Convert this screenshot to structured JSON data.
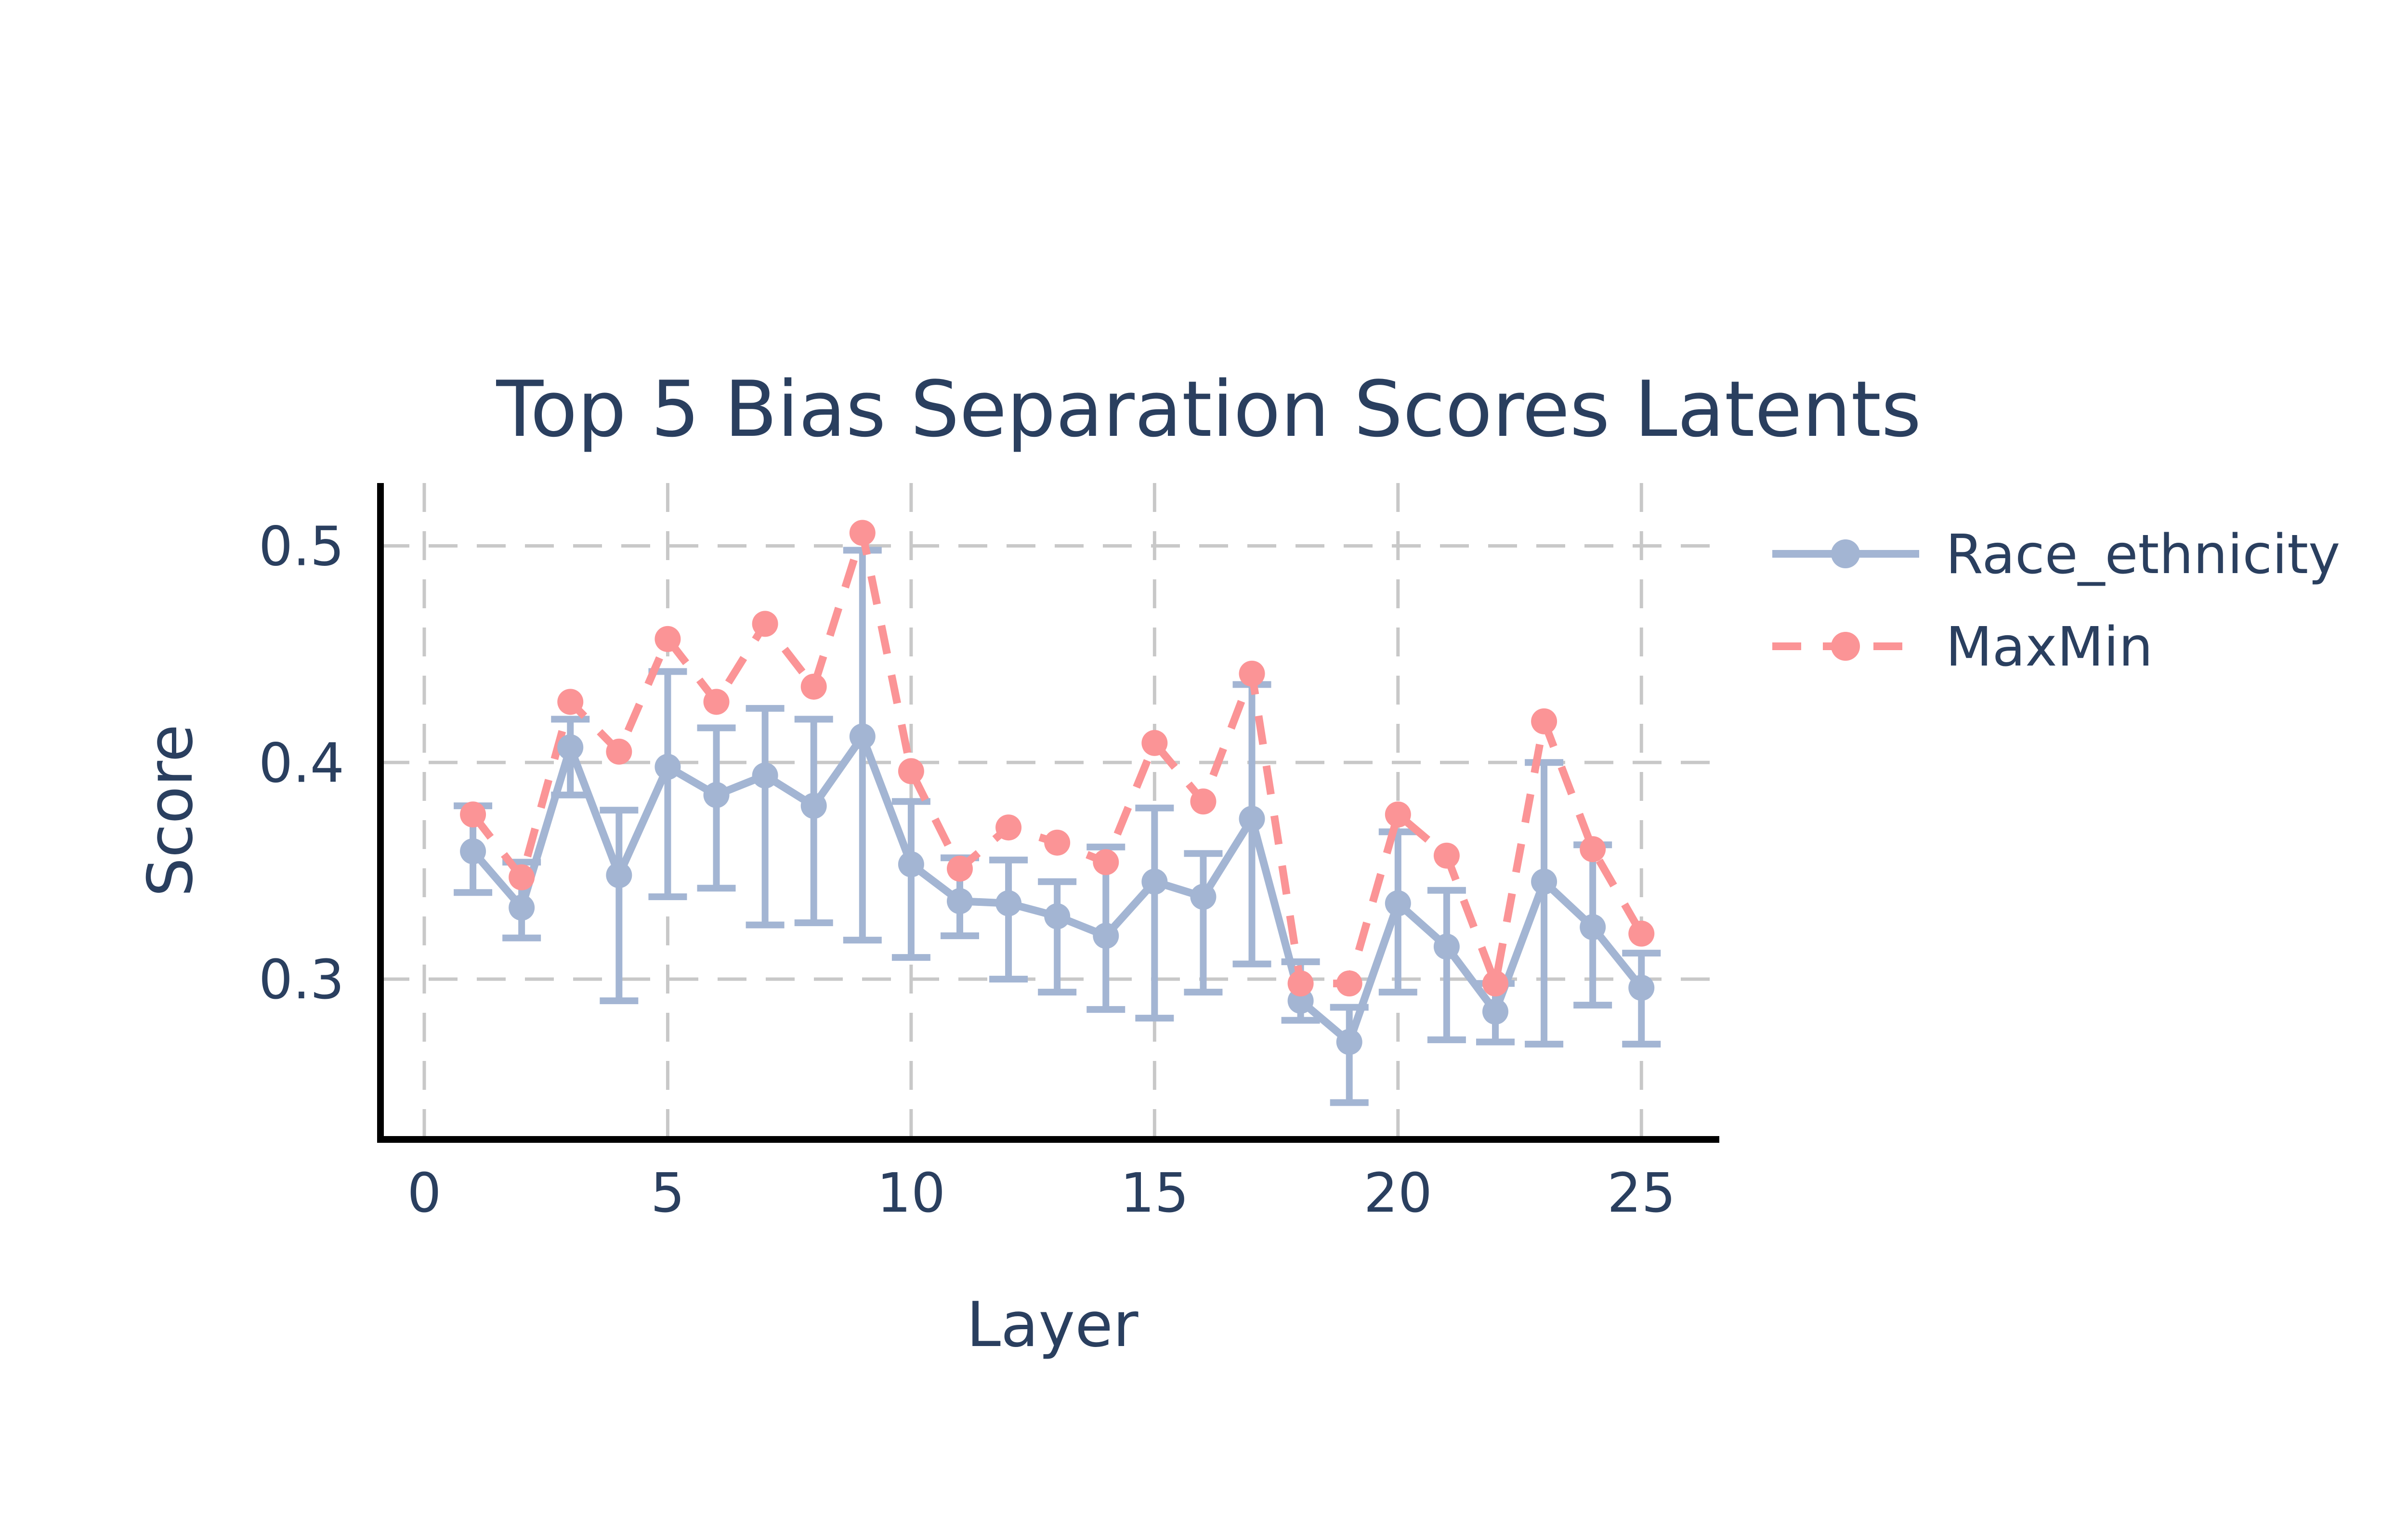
{
  "chart_data": {
    "type": "line",
    "title": "Top 5 Bias Separation Scores Latents",
    "xlabel": "Layer",
    "ylabel": "Score",
    "xlim": [
      -0.9,
      26.6
    ],
    "ylim": [
      0.226,
      0.529
    ],
    "x_ticks": [
      0,
      5,
      10,
      15,
      20,
      25
    ],
    "x_tick_labels": [
      "0",
      "5",
      "10",
      "15",
      "20",
      "25"
    ],
    "y_ticks": [
      0.3,
      0.4,
      0.5
    ],
    "y_tick_labels": [
      "0.3",
      "0.4",
      "0.5"
    ],
    "grid": true,
    "legend_position": "top-right",
    "x": [
      1,
      2,
      3,
      4,
      5,
      6,
      7,
      8,
      9,
      10,
      11,
      12,
      13,
      14,
      15,
      16,
      17,
      18,
      19,
      20,
      21,
      22,
      23,
      24,
      25
    ],
    "series": [
      {
        "name": "Race_ethnicity",
        "color": "#a3b5d3",
        "dash": "solid",
        "values": [
          0.359,
          0.333,
          0.407,
          0.348,
          0.398,
          0.385,
          0.394,
          0.38,
          0.412,
          0.353,
          0.336,
          0.335,
          0.329,
          0.32,
          0.345,
          0.338,
          0.374,
          0.29,
          0.271,
          0.335,
          0.315,
          0.285,
          0.345,
          0.324,
          0.296
        ],
        "error_upper": [
          0.38,
          0.354,
          0.42,
          0.378,
          0.442,
          0.416,
          0.425,
          0.42,
          0.498,
          0.382,
          0.356,
          0.355,
          0.345,
          0.361,
          0.379,
          0.358,
          0.436,
          0.308,
          0.287,
          0.368,
          0.341,
          0.298,
          0.4,
          0.362,
          0.312
        ],
        "error_lower": [
          0.34,
          0.319,
          0.385,
          0.29,
          0.338,
          0.342,
          0.325,
          0.326,
          0.318,
          0.31,
          0.32,
          0.3,
          0.294,
          0.286,
          0.282,
          0.294,
          0.307,
          0.281,
          0.243,
          0.294,
          0.272,
          0.271,
          0.27,
          0.288,
          0.27
        ]
      },
      {
        "name": "MaxMin",
        "color": "#fb9496",
        "dash": "dashed",
        "values": [
          0.376,
          0.347,
          0.428,
          0.405,
          0.457,
          0.428,
          0.464,
          0.435,
          0.506,
          0.396,
          0.351,
          0.37,
          0.363,
          0.354,
          0.409,
          0.382,
          0.441,
          0.298,
          0.298,
          0.376,
          0.357,
          0.298,
          0.419,
          0.36,
          0.321
        ]
      }
    ]
  }
}
